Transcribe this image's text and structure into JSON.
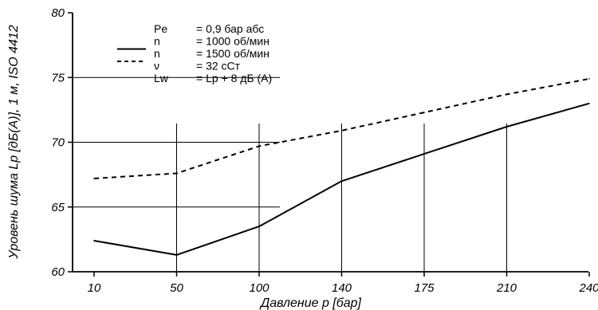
{
  "chart_data": {
    "type": "line",
    "title": "",
    "xlabel": "Давление p [бар]",
    "ylabel": "Уровень шума Lp [дБ(А)], 1 м, ISO 4412",
    "categories": [
      "10",
      "50",
      "100",
      "140",
      "175",
      "210",
      "240"
    ],
    "y_ticks": [
      "60",
      "65",
      "70",
      "75",
      "80"
    ],
    "ylim": [
      60,
      80
    ],
    "grid": "partial",
    "series": [
      {
        "name": "n = 1000 об/мин",
        "style": "solid",
        "color": "#000000",
        "values": [
          62.4,
          61.3,
          63.5,
          67.0,
          69.1,
          71.2,
          73.0
        ]
      },
      {
        "name": "n = 1500 об/мин",
        "style": "dashed",
        "color": "#000000",
        "values": [
          67.2,
          67.6,
          69.7,
          70.9,
          72.3,
          73.7,
          74.9
        ]
      }
    ],
    "legend": {
      "position": "top-left",
      "rows": [
        {
          "symbol": "Pe",
          "value": "= 0,9 бар абс",
          "line": "none"
        },
        {
          "symbol": "n",
          "value": "= 1000 об/мин",
          "line": "solid"
        },
        {
          "symbol": "n",
          "value": "= 1500 об/мин",
          "line": "dashed"
        },
        {
          "symbol": "ν",
          "value": "= 32 сСт",
          "line": "none"
        },
        {
          "symbol": "Lw",
          "value": "= Lp + 8 дБ (А)",
          "line": "none"
        }
      ]
    }
  }
}
